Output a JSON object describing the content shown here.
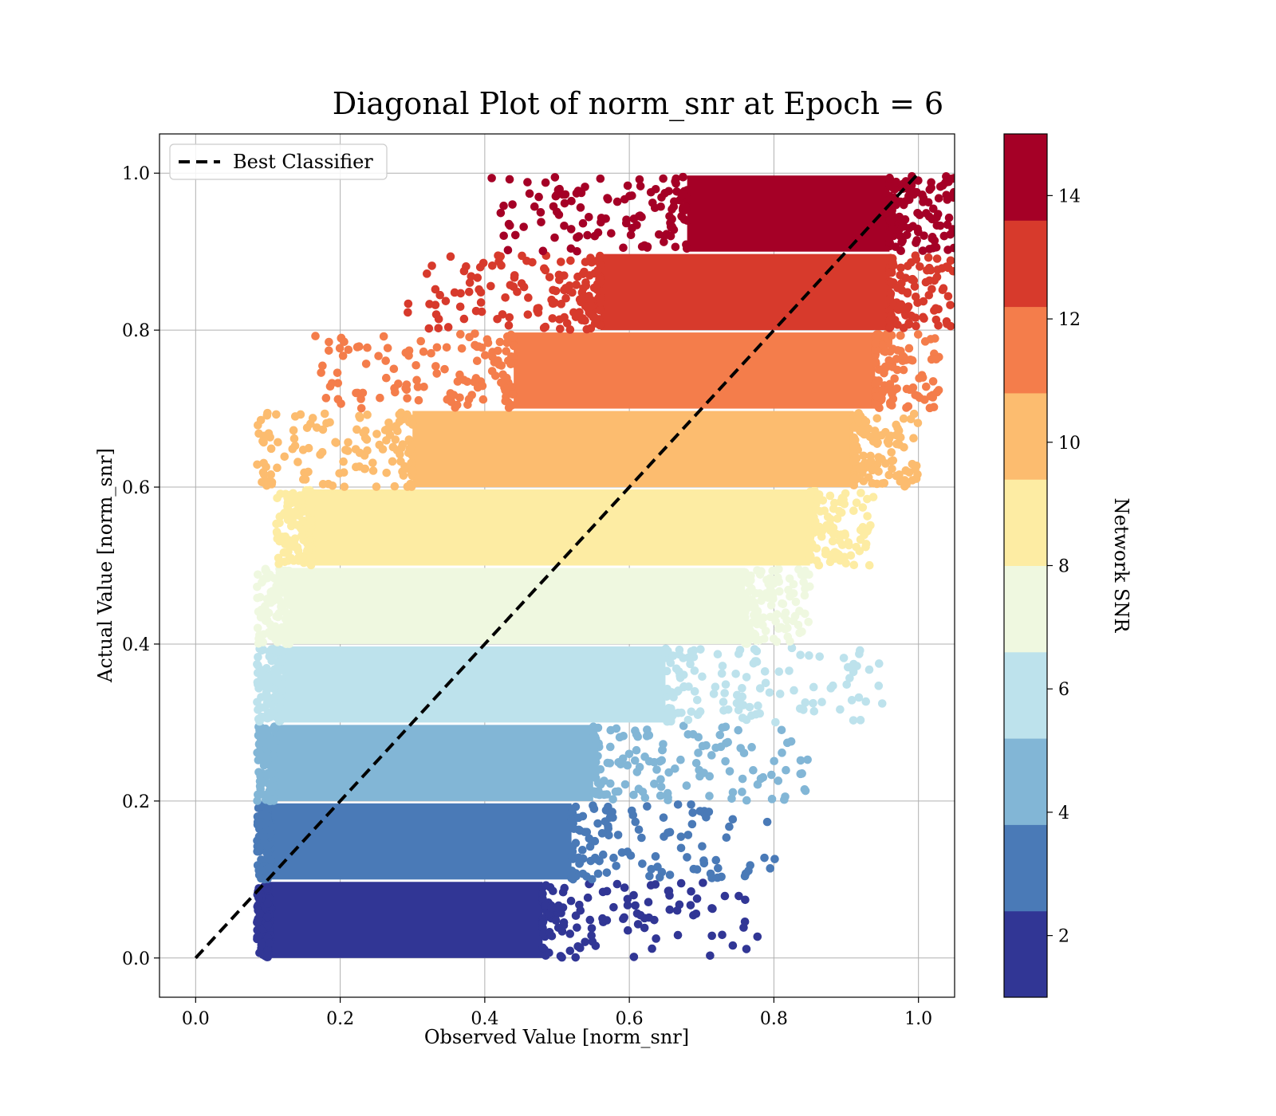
{
  "chart_data": {
    "type": "scatter",
    "title": "Diagonal Plot of norm_snr at Epoch = 6",
    "xlabel": "Observed Value [norm_snr]",
    "ylabel": "Actual Value [norm_snr]",
    "xlim": [
      -0.05,
      1.05
    ],
    "ylim": [
      -0.05,
      1.05
    ],
    "xticks": [
      "0.0",
      "0.2",
      "0.4",
      "0.6",
      "0.8",
      "1.0"
    ],
    "yticks": [
      "0.0",
      "0.2",
      "0.4",
      "0.6",
      "0.8",
      "1.0"
    ],
    "grid": true,
    "legend": {
      "location": "top-left",
      "entries": [
        "Best Classifier"
      ]
    },
    "reference_line": {
      "name": "Best Classifier",
      "x": [
        0,
        1
      ],
      "y": [
        0,
        1
      ],
      "style": "dashed",
      "color": "#000000"
    },
    "colorbar": {
      "label": "Network SNR",
      "range": [
        1,
        15
      ],
      "ticks": [
        "2",
        "4",
        "6",
        "8",
        "10",
        "12",
        "14"
      ],
      "colors": [
        "#313695",
        "#4a7ab7",
        "#82b6d6",
        "#bde2ec",
        "#eff8e0",
        "#fdeca3",
        "#fcbc6f",
        "#f47d4b",
        "#d73a2c",
        "#a50026"
      ]
    },
    "bands": [
      {
        "snr_bin": 1,
        "y_range": [
          0.0,
          0.1
        ],
        "x_core": [
          0.1,
          0.48
        ],
        "color": "#313695"
      },
      {
        "snr_bin": 2,
        "y_range": [
          0.1,
          0.2
        ],
        "x_core": [
          0.1,
          0.52
        ],
        "color": "#4a7ab7"
      },
      {
        "snr_bin": 3,
        "y_range": [
          0.2,
          0.3
        ],
        "x_core": [
          0.11,
          0.55
        ],
        "color": "#82b6d6"
      },
      {
        "snr_bin": 4,
        "y_range": [
          0.3,
          0.4
        ],
        "x_core": [
          0.12,
          0.65
        ],
        "color": "#bde2ec"
      },
      {
        "snr_bin": 5,
        "y_range": [
          0.4,
          0.5
        ],
        "x_core": [
          0.13,
          0.76
        ],
        "color": "#eff8e0"
      },
      {
        "snr_bin": 6,
        "y_range": [
          0.5,
          0.6
        ],
        "x_core": [
          0.16,
          0.85
        ],
        "color": "#fdeca3"
      },
      {
        "snr_bin": 7,
        "y_range": [
          0.6,
          0.7
        ],
        "x_core": [
          0.3,
          0.91
        ],
        "color": "#fcbc6f"
      },
      {
        "snr_bin": 8,
        "y_range": [
          0.7,
          0.8
        ],
        "x_core": [
          0.44,
          0.94
        ],
        "color": "#f47d4b"
      },
      {
        "snr_bin": 9,
        "y_range": [
          0.8,
          0.9
        ],
        "x_core": [
          0.56,
          0.96
        ],
        "color": "#d73a2c"
      },
      {
        "snr_bin": 10,
        "y_range": [
          0.9,
          1.0
        ],
        "x_core": [
          0.68,
          0.96
        ],
        "color": "#a50026"
      }
    ]
  }
}
